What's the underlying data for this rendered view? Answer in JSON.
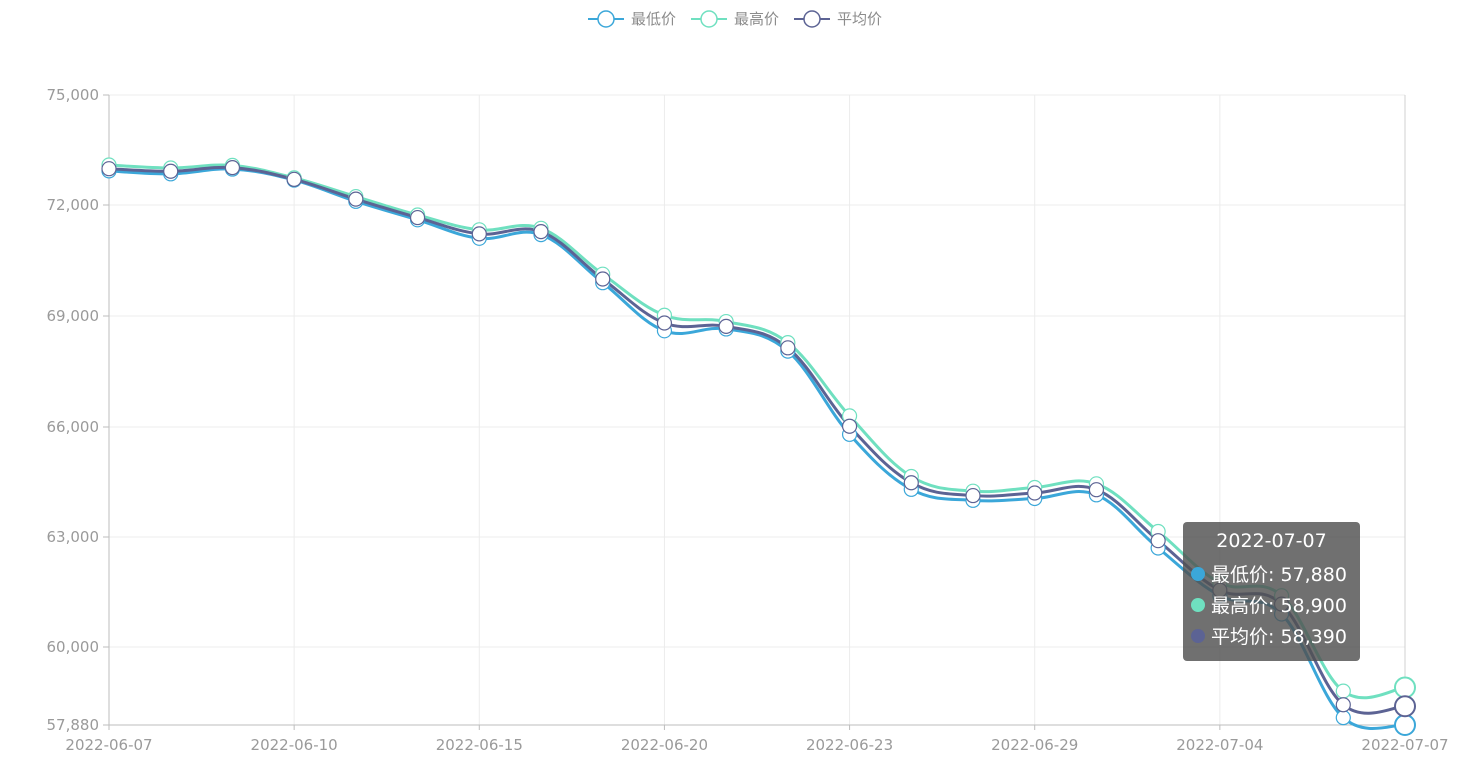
{
  "chart_data": {
    "type": "line",
    "x": [
      "2022-06-07",
      "2022-06-08",
      "2022-06-09",
      "2022-06-10",
      "2022-06-13",
      "2022-06-14",
      "2022-06-15",
      "2022-06-16",
      "2022-06-17",
      "2022-06-20",
      "2022-06-21",
      "2022-06-22",
      "2022-06-23",
      "2022-06-24",
      "2022-06-27",
      "2022-06-29",
      "2022-06-30",
      "2022-07-01",
      "2022-07-04",
      "2022-07-05",
      "2022-07-06",
      "2022-07-07"
    ],
    "x_tick_labels": [
      "2022-06-07",
      "2022-06-10",
      "2022-06-15",
      "2022-06-20",
      "2022-06-23",
      "2022-06-29",
      "2022-07-04",
      "2022-07-07"
    ],
    "y_tick_labels": [
      "57,880",
      "60,000",
      "63,000",
      "66,000",
      "69,000",
      "72,000",
      "75,000"
    ],
    "y_ticks": [
      57880,
      60000,
      63000,
      66000,
      69000,
      72000,
      75000
    ],
    "ylim": [
      57880,
      75000
    ],
    "grid": true,
    "smooth": true,
    "legend_position": "top-center",
    "series": [
      {
        "name": "最低价",
        "color": "#3ba7d9",
        "values": [
          72930,
          72850,
          72980,
          72680,
          72100,
          71600,
          71100,
          71200,
          69900,
          68600,
          68650,
          68050,
          65800,
          64300,
          64000,
          64050,
          64150,
          62700,
          61400,
          60900,
          58080,
          57880
        ]
      },
      {
        "name": "最高价",
        "color": "#6fe0c0",
        "values": [
          73090,
          73010,
          73080,
          72740,
          72230,
          71730,
          71330,
          71370,
          70130,
          69020,
          68850,
          68280,
          66300,
          64650,
          64250,
          64350,
          64450,
          63150,
          61750,
          61400,
          58800,
          58900
        ]
      },
      {
        "name": "平均价",
        "color": "#5c6394",
        "values": [
          72990,
          72920,
          73020,
          72700,
          72160,
          71660,
          71220,
          71280,
          70000,
          68810,
          68720,
          68140,
          66020,
          64480,
          64130,
          64200,
          64290,
          62900,
          61550,
          61170,
          58430,
          58390
        ]
      }
    ],
    "tooltip": {
      "title": "2022-07-07",
      "rows": [
        {
          "label": "最低价: 57,880",
          "color": "#3ba7d9"
        },
        {
          "label": "最高价: 58,900",
          "color": "#6fe0c0"
        },
        {
          "label": "平均价: 58,390",
          "color": "#5c6394"
        }
      ]
    }
  }
}
